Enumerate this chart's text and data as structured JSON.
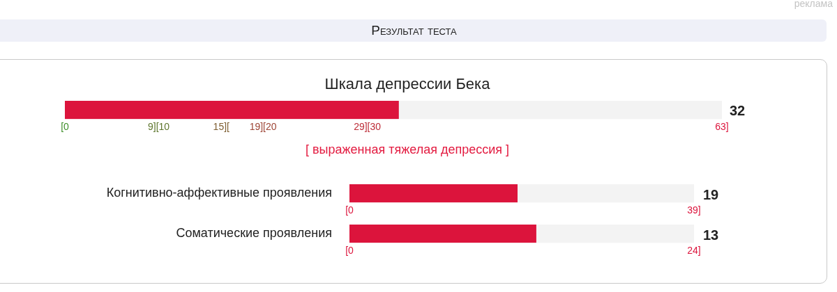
{
  "chart_data": [
    {
      "type": "bar",
      "orientation": "horizontal",
      "title": "Шкала депрессии Бека",
      "categories": [
        null
      ],
      "values": [
        32
      ],
      "color": "#dc143c",
      "xlim": [
        0,
        63
      ],
      "xticks": [
        {
          "value": 0,
          "label": "[0"
        },
        {
          "value": 9,
          "label": "9][10"
        },
        {
          "value": 15,
          "label": "15]["
        },
        {
          "value": 19,
          "label": "19][20"
        },
        {
          "value": 29,
          "label": "29][30"
        },
        {
          "value": 63,
          "label": "63]"
        }
      ],
      "annotations": [
        "Результат теста",
        "реклама",
        "32",
        "[ выраженная тяжелая депрессия ]"
      ]
    },
    {
      "type": "bar",
      "orientation": "horizontal",
      "categories": [
        "Когнитивно-аффективные проявления"
      ],
      "values": [
        19
      ],
      "color": "#dc143c",
      "xlim": [
        0,
        39
      ],
      "xticks": [
        {
          "value": 0,
          "label": "[0"
        },
        {
          "value": 39,
          "label": "39]"
        }
      ],
      "annotations": [
        "19"
      ]
    },
    {
      "type": "bar",
      "orientation": "horizontal",
      "categories": [
        "Соматические проявления"
      ],
      "values": [
        13
      ],
      "color": "#dc143c",
      "xlim": [
        0,
        24
      ],
      "xticks": [
        {
          "value": 0,
          "label": "[0"
        },
        {
          "value": 24,
          "label": "24]"
        }
      ],
      "annotations": [
        "13"
      ]
    }
  ]
}
